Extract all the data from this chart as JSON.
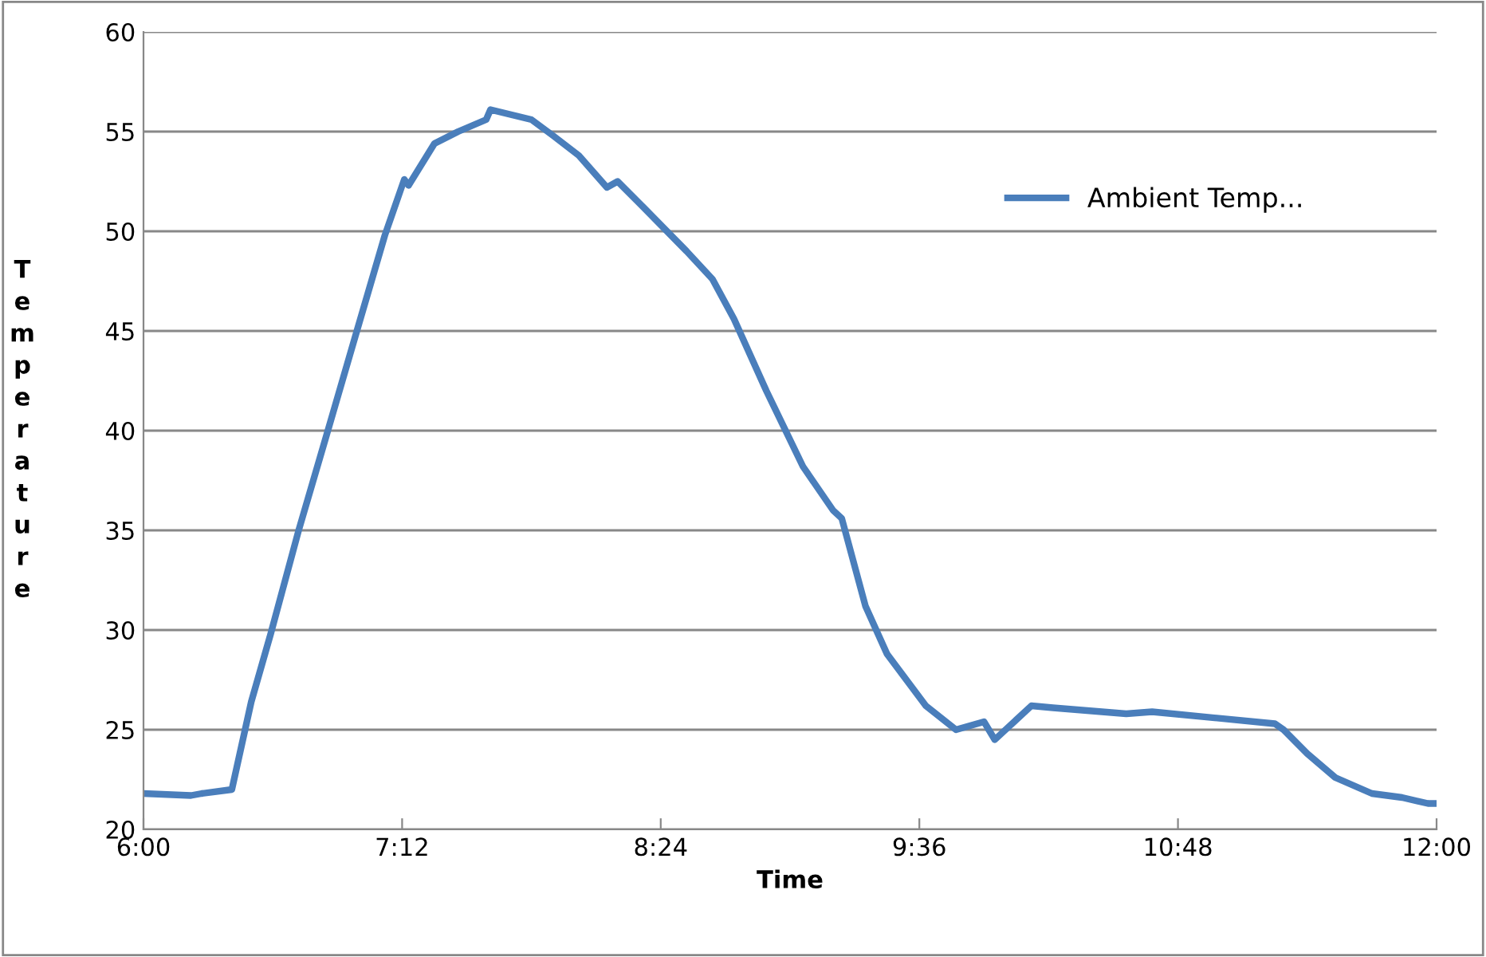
{
  "chart_data": {
    "type": "line",
    "xlabel": "Time",
    "ylabel": "Temperature",
    "x": [
      6.0,
      6.22,
      6.27,
      6.41,
      6.5,
      6.59,
      6.72,
      6.85,
      6.99,
      7.12,
      7.21,
      7.23,
      7.35,
      7.46,
      7.59,
      7.61,
      7.8,
      7.9,
      8.02,
      8.15,
      8.2,
      8.32,
      8.52,
      8.64,
      8.74,
      8.89,
      9.06,
      9.2,
      9.24,
      9.35,
      9.45,
      9.63,
      9.77,
      9.9,
      9.95,
      10.12,
      10.22,
      10.56,
      10.68,
      11.25,
      11.29,
      11.4,
      11.53,
      11.7,
      11.84,
      11.96,
      12.0
    ],
    "series": [
      {
        "name": "Ambient Temp...",
        "color": "#4a7ebb",
        "values": [
          21.8,
          21.7,
          21.8,
          22.0,
          26.4,
          29.8,
          35.0,
          39.8,
          45.0,
          49.8,
          52.6,
          52.3,
          54.4,
          55.0,
          55.6,
          56.1,
          55.6,
          54.8,
          53.8,
          52.2,
          52.5,
          51.2,
          49.0,
          47.6,
          45.6,
          42.0,
          38.2,
          36.0,
          35.6,
          31.2,
          28.8,
          26.2,
          25.0,
          25.4,
          24.5,
          26.2,
          26.1,
          25.8,
          25.9,
          25.3,
          25.0,
          23.8,
          22.6,
          21.8,
          21.6,
          21.3,
          21.3
        ]
      }
    ],
    "xlim": [
      6,
      12
    ],
    "xticks": [
      {
        "value": 6,
        "label": "6:00"
      },
      {
        "value": 7.2,
        "label": "7:12"
      },
      {
        "value": 8.4,
        "label": "8:24"
      },
      {
        "value": 9.6,
        "label": "9:36"
      },
      {
        "value": 10.8,
        "label": "10:48"
      },
      {
        "value": 12,
        "label": "12:00"
      }
    ],
    "ylim": [
      20,
      60
    ],
    "yticks": [
      20,
      25,
      30,
      35,
      40,
      45,
      50,
      55,
      60
    ],
    "grid": "y",
    "legend": "top right",
    "marker": "none",
    "line_style": "solid"
  }
}
